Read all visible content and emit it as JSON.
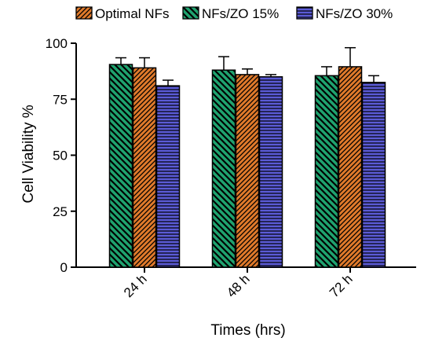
{
  "chart_data": {
    "type": "bar",
    "title": "",
    "xlabel": "Times (hrs)",
    "ylabel": "Cell Viability %",
    "ylim": [
      0,
      100
    ],
    "yticks": [
      "0",
      "25",
      "50",
      "75",
      "100"
    ],
    "categories": [
      "24 h",
      "48 h",
      "72 h"
    ],
    "legend_position": "top",
    "series": [
      {
        "name": "NFs/ZO 15%",
        "values": [
          90.5,
          88,
          85.5
        ],
        "errors": [
          3,
          6,
          4
        ],
        "color": "#1fa36f",
        "pattern": "diagonal-down"
      },
      {
        "name": "Optimal NFs",
        "values": [
          89,
          86,
          89.5
        ],
        "errors": [
          4.5,
          2.5,
          8.5
        ],
        "color": "#e07a2b",
        "pattern": "diagonal-up"
      },
      {
        "name": "NFs/ZO 30%",
        "values": [
          81,
          85,
          82.5
        ],
        "errors": [
          2.5,
          1,
          3
        ],
        "color": "#5b5bd6",
        "pattern": "horizontal"
      }
    ],
    "legend_order": [
      1,
      0,
      2
    ],
    "grid": false
  }
}
